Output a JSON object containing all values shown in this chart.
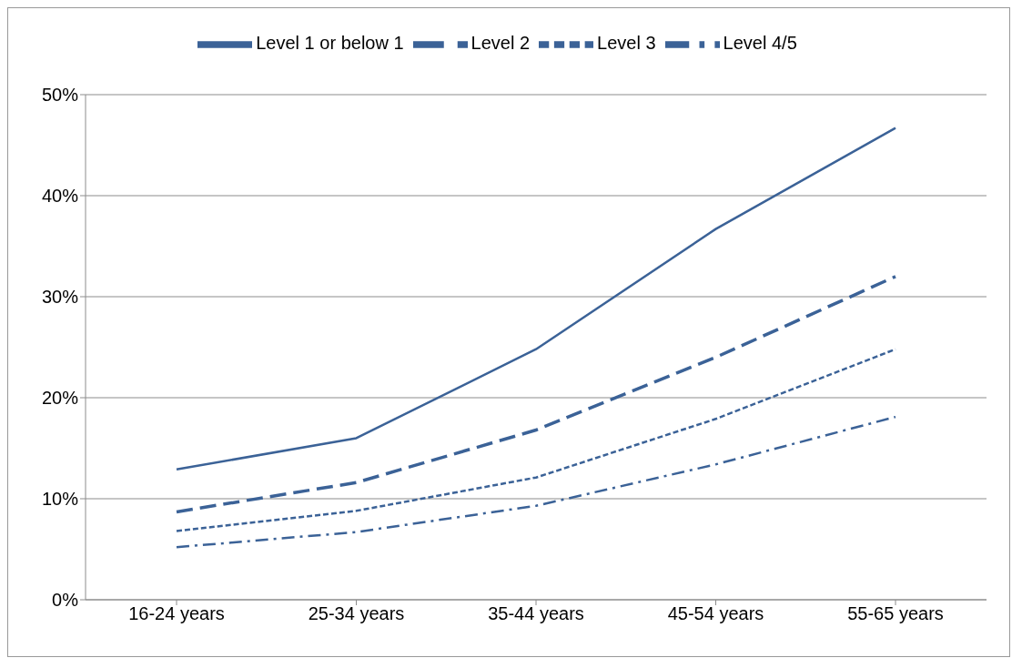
{
  "chart_data": {
    "type": "line",
    "categories": [
      "16-24 years",
      "25-34 years",
      "35-44 years",
      "45-54 years",
      "55-65 years"
    ],
    "series": [
      {
        "name": "Level 1 or below 1",
        "color": "#3b6297",
        "line_style": "solid",
        "values": [
          12.9,
          16.0,
          24.8,
          36.7,
          46.7
        ]
      },
      {
        "name": "Level 2",
        "color": "#3b6297",
        "line_style": "dashed",
        "values": [
          8.7,
          11.6,
          16.8,
          24.0,
          32.0
        ]
      },
      {
        "name": "Level 3",
        "color": "#3b6297",
        "line_style": "dotted",
        "values": [
          6.8,
          8.8,
          12.1,
          17.9,
          24.8
        ]
      },
      {
        "name": "Level 4/5",
        "color": "#3b6297",
        "line_style": "dashdot",
        "values": [
          5.2,
          6.7,
          9.3,
          13.4,
          18.1
        ]
      }
    ],
    "ylim": [
      0,
      50
    ],
    "yticks": [
      {
        "value": 0,
        "label": "0%"
      },
      {
        "value": 10,
        "label": "10%"
      },
      {
        "value": 20,
        "label": "20%"
      },
      {
        "value": 30,
        "label": "30%"
      },
      {
        "value": 40,
        "label": "40%"
      },
      {
        "value": 50,
        "label": "50%"
      }
    ],
    "grid": "y",
    "legend": "top",
    "marker": "none"
  }
}
